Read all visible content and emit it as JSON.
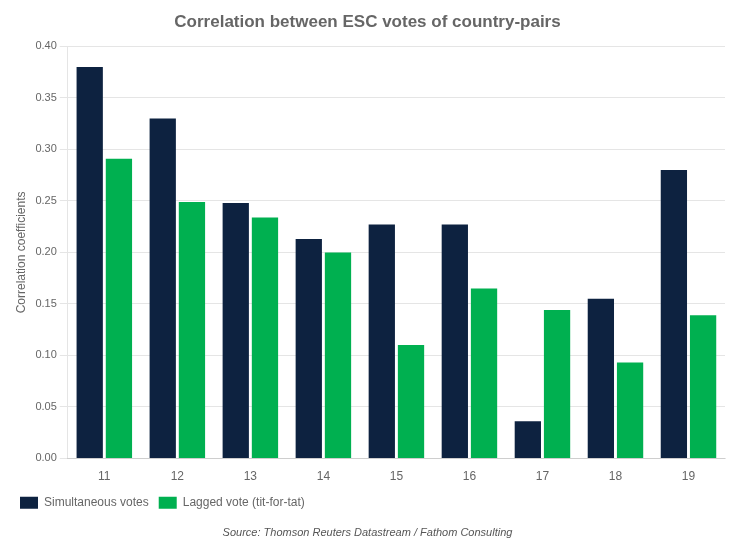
{
  "chart_data": {
    "type": "bar",
    "title": "Correlation between ESC votes of country-pairs",
    "ylabel": "Correlation coefficients",
    "annotations": [
      "Source: Thomson Reuters Datastream / Fathom Consulting"
    ],
    "categories": [
      11,
      12,
      13,
      14,
      15,
      16,
      17,
      18,
      19
    ],
    "series": [
      {
        "name": "Simultaneous votes",
        "color": "#0d2240",
        "values": [
          0.38,
          0.33,
          0.248,
          0.213,
          0.227,
          0.227,
          0.036,
          0.155,
          0.28
        ]
      },
      {
        "name": "Lagged vote (tit-for-tat)",
        "color": "#00b050",
        "values": [
          0.291,
          0.249,
          0.234,
          0.2,
          0.11,
          0.165,
          0.144,
          0.093,
          0.139
        ]
      }
    ],
    "ylim": [
      0,
      0.4
    ],
    "yticks": [
      {
        "value": 0.0,
        "label": "0.00"
      },
      0.05,
      {
        "value": 0.1,
        "label": "0.10"
      },
      0.15,
      {
        "value": 0.2,
        "label": "0.20"
      },
      0.25,
      {
        "value": 0.3,
        "label": "0.30"
      },
      0.35,
      {
        "value": 0.4,
        "label": "0.40"
      }
    ],
    "grid": true,
    "legend": "bottom"
  }
}
